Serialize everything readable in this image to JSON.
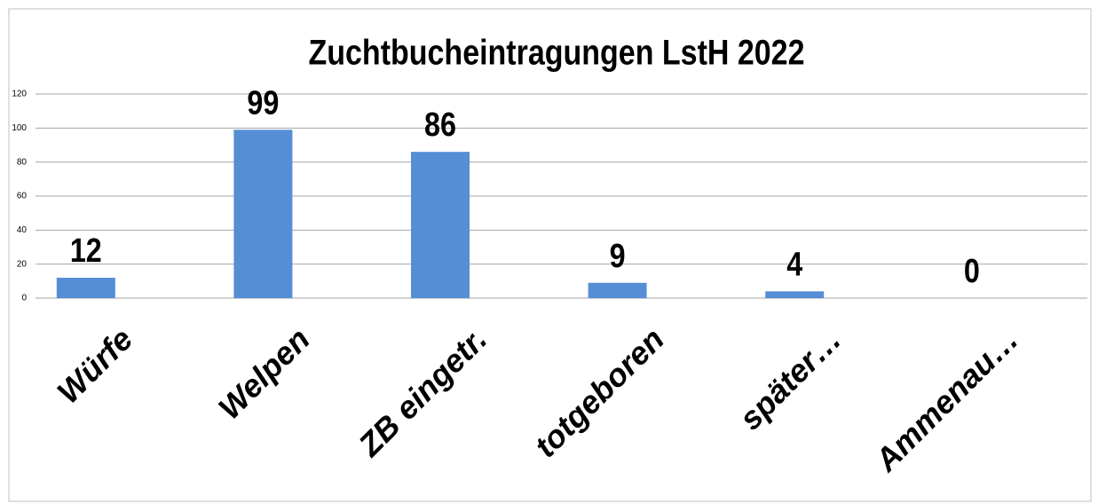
{
  "chart_data": {
    "type": "bar",
    "title": "Zuchtbucheintragungen LstH 2022",
    "categories": [
      "Würfe",
      "Welpen",
      "ZB eingetr.",
      "totgeboren",
      "später…",
      "Ammenau…"
    ],
    "values": [
      12,
      99,
      86,
      9,
      4,
      0
    ],
    "color": "#558ed5",
    "ylim": [
      0,
      120
    ],
    "yticks": [
      0,
      20,
      40,
      60,
      80,
      100,
      120
    ],
    "grid": true
  }
}
